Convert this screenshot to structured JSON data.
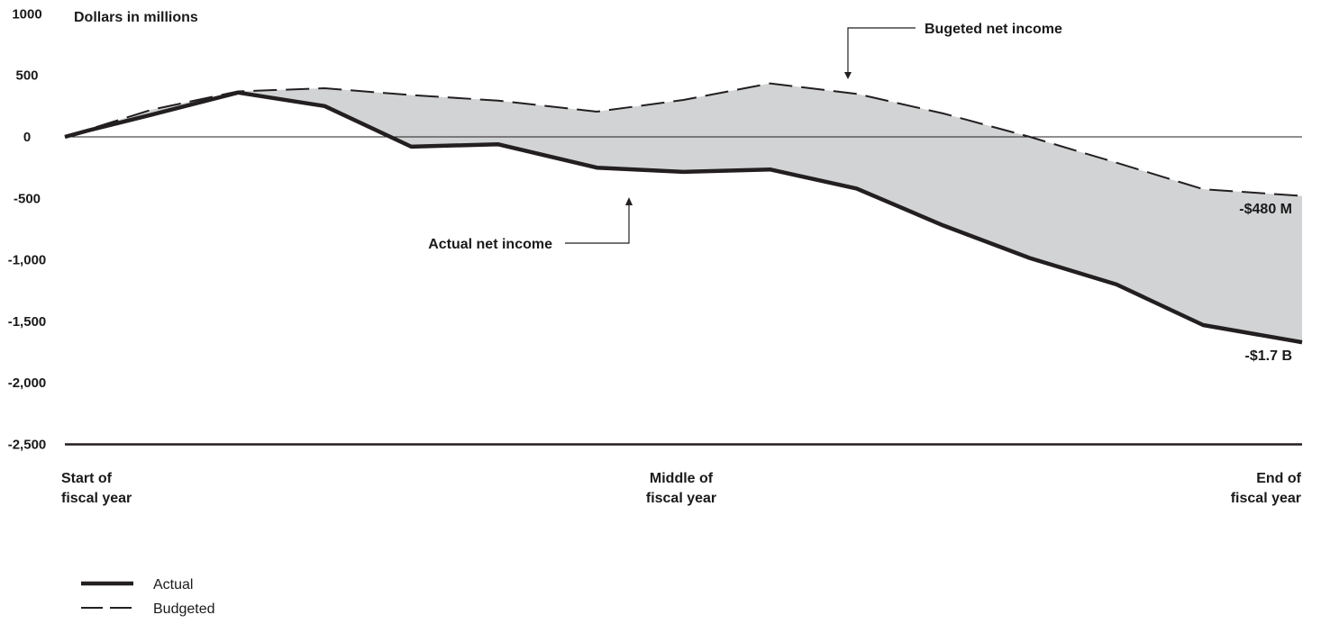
{
  "chart_data": {
    "type": "area",
    "unit_label": "Dollars in millions",
    "y_ticks": [
      1000,
      500,
      0,
      -500,
      -1000,
      -1500,
      -2000,
      -2500
    ],
    "y_tick_labels": [
      "1000",
      "500",
      "0",
      "-500",
      "-1,000",
      "-1,500",
      "-2,000",
      "-2,500"
    ],
    "ylim": [
      -2500,
      1000
    ],
    "x_categories": [
      {
        "x": 0,
        "lines": [
          "Start of",
          "fiscal year"
        ]
      },
      {
        "x": 0.5,
        "lines": [
          "Middle of",
          "fiscal year"
        ]
      },
      {
        "x": 1,
        "lines": [
          "End of",
          "fiscal year"
        ]
      }
    ],
    "xlim": [
      0,
      1
    ],
    "grid": false,
    "series": [
      {
        "name": "Actual",
        "style": "solid",
        "points": [
          [
            0,
            0
          ],
          [
            0.02,
            55
          ],
          [
            0.07,
            180
          ],
          [
            0.14,
            360
          ],
          [
            0.21,
            250
          ],
          [
            0.28,
            -80
          ],
          [
            0.35,
            -60
          ],
          [
            0.43,
            -250
          ],
          [
            0.5,
            -285
          ],
          [
            0.57,
            -265
          ],
          [
            0.64,
            -420
          ],
          [
            0.71,
            -720
          ],
          [
            0.78,
            -985
          ],
          [
            0.85,
            -1200
          ],
          [
            0.92,
            -1530
          ],
          [
            1.0,
            -1670
          ]
        ]
      },
      {
        "name": "Budgeted",
        "style": "dashed",
        "points": [
          [
            0,
            0
          ],
          [
            0.07,
            220
          ],
          [
            0.14,
            370
          ],
          [
            0.21,
            395
          ],
          [
            0.28,
            340
          ],
          [
            0.35,
            295
          ],
          [
            0.43,
            205
          ],
          [
            0.5,
            300
          ],
          [
            0.57,
            435
          ],
          [
            0.64,
            350
          ],
          [
            0.71,
            190
          ],
          [
            0.78,
            0
          ],
          [
            0.85,
            -210
          ],
          [
            0.92,
            -425
          ],
          [
            1.0,
            -480
          ]
        ]
      }
    ],
    "fill_between": {
      "series": [
        "Budgeted",
        "Actual"
      ],
      "color": "#d1d3d4"
    },
    "annotations": {
      "budgeted_callout": "Bugeted net income",
      "actual_callout": "Actual net income",
      "budget_end": "-$480 M",
      "actual_end": "-$1.7 B"
    },
    "legend": {
      "placement": "bottom-left",
      "entries": [
        {
          "label": "Actual",
          "style": "solid"
        },
        {
          "label": "Budgeted",
          "style": "dashed"
        }
      ]
    },
    "colors": {
      "line": "#231f20",
      "fill": "#d1d3d4"
    }
  }
}
